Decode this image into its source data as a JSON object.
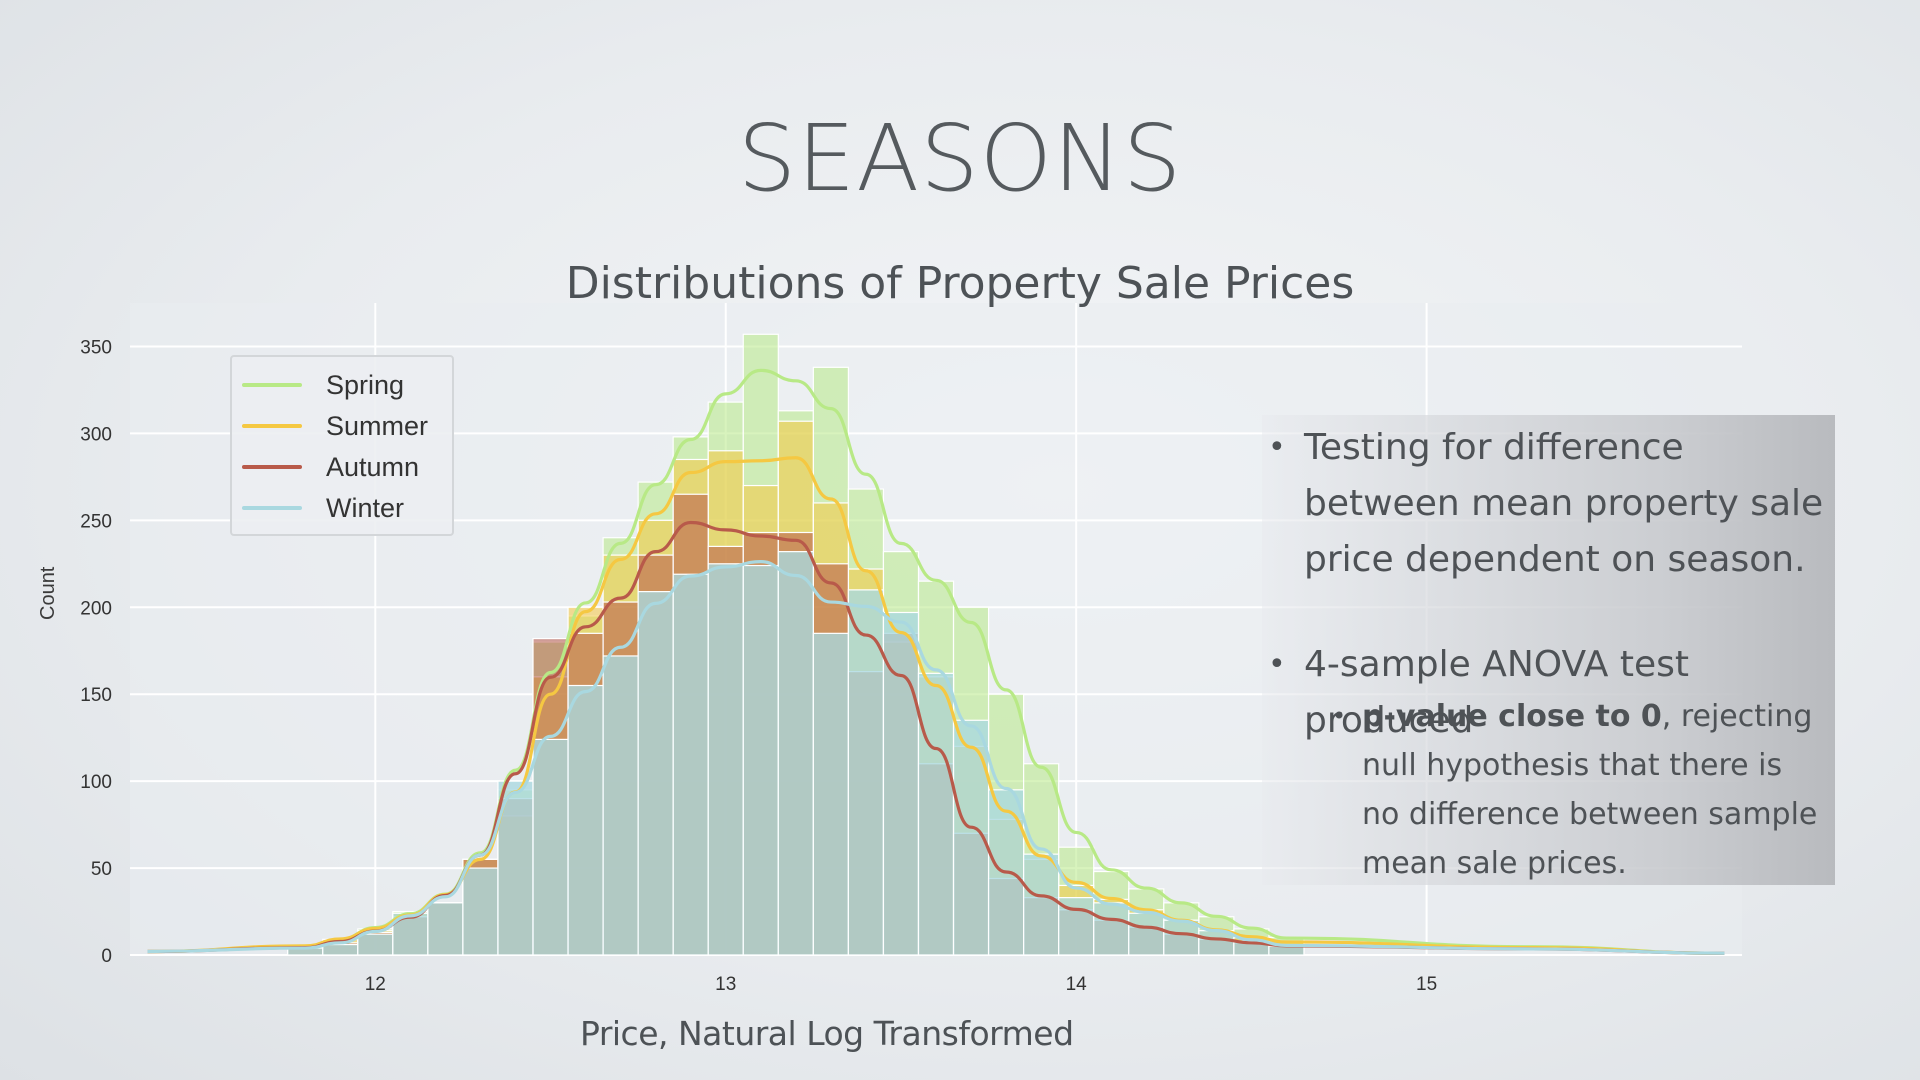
{
  "slide": {
    "title": "SEASONS"
  },
  "chart_data": {
    "type": "histogram",
    "title": "Distributions of Property Sale Prices",
    "xlabel": "Price, Natural Log Transformed",
    "ylabel": "Count",
    "xlim": [
      11.3,
      15.9
    ],
    "ylim": [
      0,
      375
    ],
    "xticks": [
      12,
      13,
      14,
      15
    ],
    "yticks": [
      0,
      50,
      100,
      150,
      200,
      250,
      300,
      350
    ],
    "grid": true,
    "legend_position": "top-left",
    "bin_start": 11.75,
    "bin_width": 0.1,
    "series": [
      {
        "name": "Spring",
        "color": "#b8e986",
        "values": [
          5,
          8,
          15,
          25,
          30,
          55,
          95,
          180,
          195,
          240,
          272,
          298,
          318,
          357,
          313,
          338,
          268,
          232,
          215,
          200,
          150,
          110,
          62,
          48,
          38,
          30,
          22,
          15,
          10
        ]
      },
      {
        "name": "Summer",
        "color": "#f5c842",
        "values": [
          5,
          9,
          14,
          24,
          30,
          55,
          80,
          160,
          200,
          230,
          250,
          285,
          290,
          270,
          307,
          260,
          222,
          180,
          160,
          120,
          78,
          55,
          40,
          32,
          26,
          20,
          14,
          10,
          8
        ]
      },
      {
        "name": "Autumn",
        "color": "#b85a4a",
        "values": [
          4,
          7,
          13,
          22,
          30,
          55,
          90,
          182,
          185,
          203,
          230,
          265,
          235,
          243,
          243,
          225,
          163,
          185,
          110,
          70,
          44,
          33,
          26,
          20,
          16,
          12,
          9,
          7,
          5
        ]
      },
      {
        "name": "Winter",
        "color": "#a9d8e0",
        "values": [
          4,
          6,
          12,
          24,
          30,
          50,
          100,
          124,
          155,
          172,
          209,
          219,
          225,
          224,
          232,
          185,
          210,
          197,
          162,
          135,
          95,
          58,
          33,
          30,
          24,
          20,
          14,
          8,
          5
        ]
      }
    ]
  },
  "notes": {
    "bullet1": "Testing for difference between mean property sale price dependent on season.",
    "bullet2": "4-sample ANOVA test produced",
    "sub_bold": "p-value close to 0",
    "sub_rest": ", rejecting null hypothesis that there is no difference between sample mean sale prices."
  }
}
